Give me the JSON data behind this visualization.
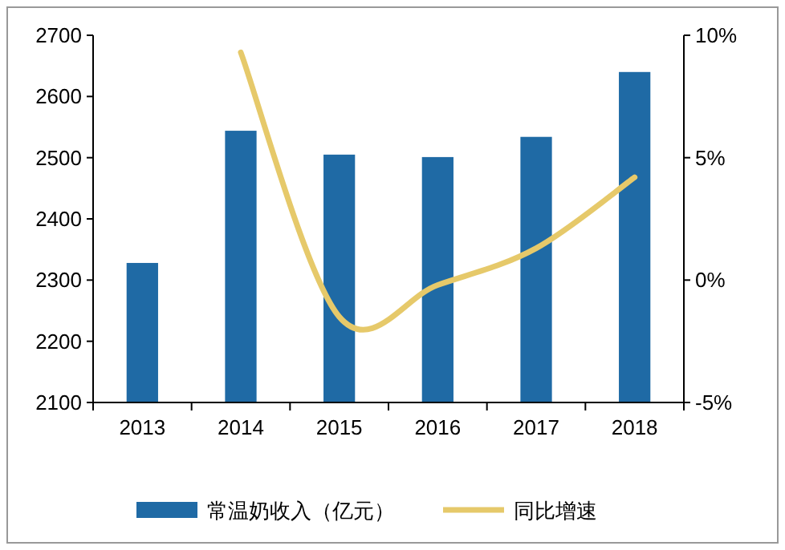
{
  "chart_data": {
    "type": "bar",
    "categories": [
      "2013",
      "2014",
      "2015",
      "2016",
      "2017",
      "2018"
    ],
    "ylim": [
      2100,
      2700
    ],
    "yticks": [
      2100,
      2200,
      2300,
      2400,
      2500,
      2600,
      2700
    ],
    "y2lim": [
      -5,
      10
    ],
    "y2ticks": [
      {
        "value": -5,
        "label": "-5%"
      },
      {
        "value": 0,
        "label": "0%"
      },
      {
        "value": 5,
        "label": "5%"
      },
      {
        "value": 10,
        "label": "10%"
      }
    ],
    "series": [
      {
        "name": "常温奶收入（亿元）",
        "color": "#1f6aa5",
        "values": [
          2328,
          2544,
          2505,
          2501,
          2534,
          2640
        ]
      },
      {
        "name": "同比增速",
        "type": "line",
        "axis": "y2",
        "color": "#e6c96a",
        "values": [
          null,
          9.3,
          -1.5,
          -0.2,
          1.3,
          4.2
        ]
      }
    ],
    "legend": "bottom",
    "grid": false
  }
}
